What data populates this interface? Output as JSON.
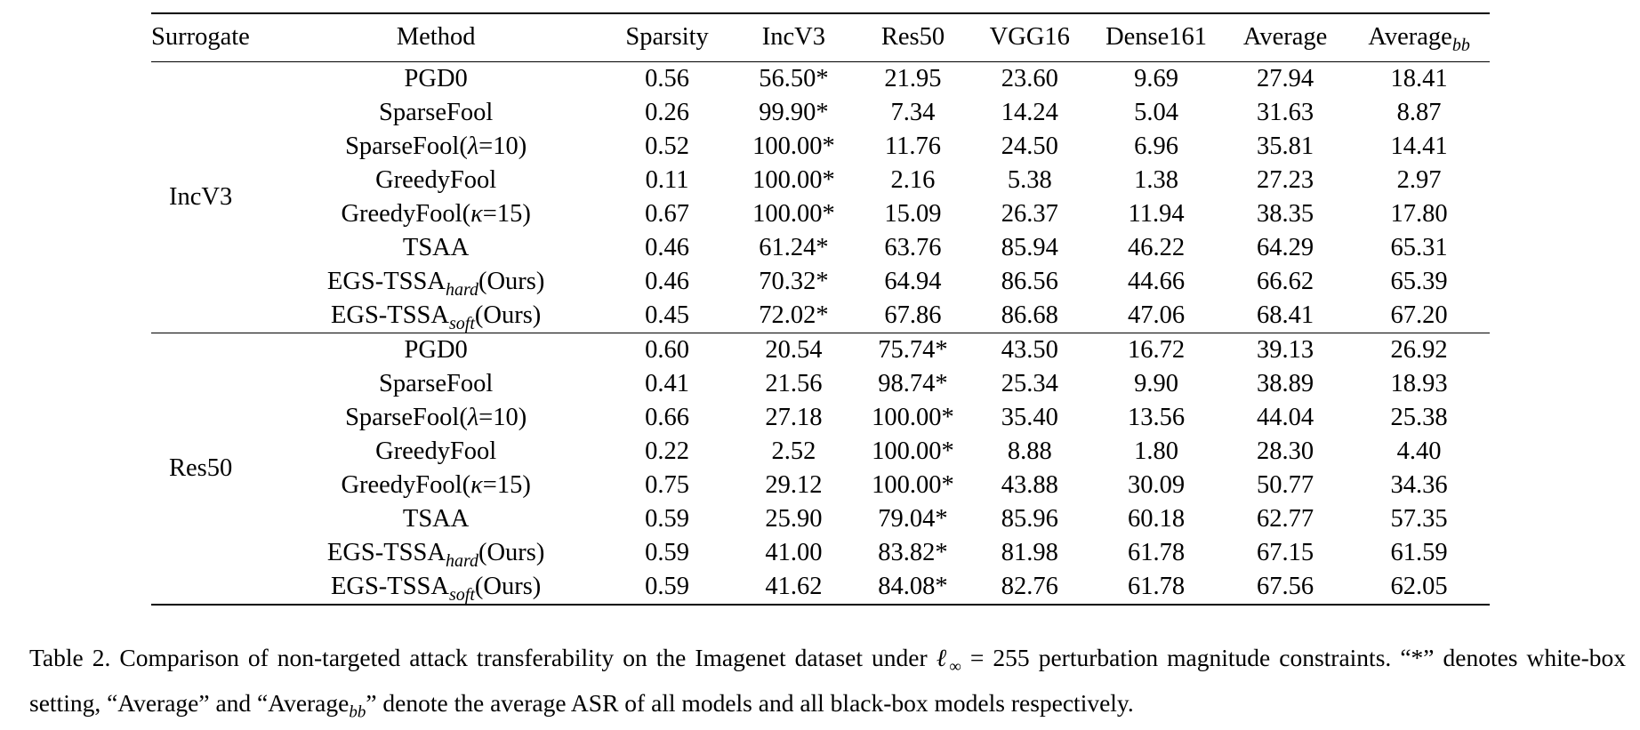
{
  "table": {
    "headers": {
      "surrogate": "Surrogate",
      "method": "Method",
      "sparsity": "Sparsity",
      "incv3": "IncV3",
      "res50": "Res50",
      "vgg16": "VGG16",
      "dense161": "Dense161",
      "average": "Average",
      "average_bb_base": "Average",
      "average_bb_sub": "bb"
    },
    "groups": [
      {
        "surrogate": "IncV3",
        "rows": [
          {
            "method": "PGD0",
            "sparsity": "0.56",
            "incv3": "56.50*",
            "res50": "21.95",
            "vgg16": "23.60",
            "dense161": "9.69",
            "average": "27.94",
            "average_bb": "18.41"
          },
          {
            "method": "SparseFool",
            "sparsity": "0.26",
            "incv3": "99.90*",
            "res50": "7.34",
            "vgg16": "14.24",
            "dense161": "5.04",
            "average": "31.63",
            "average_bb": "8.87"
          },
          {
            "method_base": "SparseFool(",
            "method_param": "λ",
            "method_tail": "=10)",
            "sparsity": "0.52",
            "incv3": "100.00*",
            "res50": "11.76",
            "vgg16": "24.50",
            "dense161": "6.96",
            "average": "35.81",
            "average_bb": "14.41"
          },
          {
            "method": "GreedyFool",
            "sparsity": "0.11",
            "incv3": "100.00*",
            "res50": "2.16",
            "vgg16": "5.38",
            "dense161": "1.38",
            "average": "27.23",
            "average_bb": "2.97"
          },
          {
            "method_base": "GreedyFool(",
            "method_param": "κ",
            "method_tail": "=15)",
            "sparsity": "0.67",
            "incv3": "100.00*",
            "res50": "15.09",
            "vgg16": "26.37",
            "dense161": "11.94",
            "average": "38.35",
            "average_bb": "17.80"
          },
          {
            "method": "TSAA",
            "sparsity": "0.46",
            "incv3": "61.24*",
            "res50": "63.76",
            "vgg16": "85.94",
            "dense161": "46.22",
            "average": "64.29",
            "average_bb": "65.31"
          },
          {
            "method_base": "EGS-TSSA",
            "method_sub": "hard",
            "method_tail": "(Ours)",
            "sparsity": "0.46",
            "incv3": "70.32*",
            "res50": "64.94",
            "vgg16": "86.56",
            "dense161": "44.66",
            "average": "66.62",
            "average_bb": "65.39"
          },
          {
            "method_base": "EGS-TSSA",
            "method_sub": "soft",
            "method_tail": "(Ours)",
            "sparsity": "0.45",
            "incv3": "72.02*",
            "res50": "67.86",
            "vgg16": "86.68",
            "dense161": "47.06",
            "average": "68.41",
            "average_bb": "67.20"
          }
        ]
      },
      {
        "surrogate": "Res50",
        "rows": [
          {
            "method": "PGD0",
            "sparsity": "0.60",
            "incv3": "20.54",
            "res50": "75.74*",
            "vgg16": "43.50",
            "dense161": "16.72",
            "average": "39.13",
            "average_bb": "26.92"
          },
          {
            "method": "SparseFool",
            "sparsity": "0.41",
            "incv3": "21.56",
            "res50": "98.74*",
            "vgg16": "25.34",
            "dense161": "9.90",
            "average": "38.89",
            "average_bb": "18.93"
          },
          {
            "method_base": "SparseFool(",
            "method_param": "λ",
            "method_tail": "=10)",
            "sparsity": "0.66",
            "incv3": "27.18",
            "res50": "100.00*",
            "vgg16": "35.40",
            "dense161": "13.56",
            "average": "44.04",
            "average_bb": "25.38"
          },
          {
            "method": "GreedyFool",
            "sparsity": "0.22",
            "incv3": "2.52",
            "res50": "100.00*",
            "vgg16": "8.88",
            "dense161": "1.80",
            "average": "28.30",
            "average_bb": "4.40"
          },
          {
            "method_base": "GreedyFool(",
            "method_param": "κ",
            "method_tail": "=15)",
            "sparsity": "0.75",
            "incv3": "29.12",
            "res50": "100.00*",
            "vgg16": "43.88",
            "dense161": "30.09",
            "average": "50.77",
            "average_bb": "34.36"
          },
          {
            "method": "TSAA",
            "sparsity": "0.59",
            "incv3": "25.90",
            "res50": "79.04*",
            "vgg16": "85.96",
            "dense161": "60.18",
            "average": "62.77",
            "average_bb": "57.35"
          },
          {
            "method_base": "EGS-TSSA",
            "method_sub": "hard",
            "method_tail": "(Ours)",
            "sparsity": "0.59",
            "incv3": "41.00",
            "res50": "83.82*",
            "vgg16": "81.98",
            "dense161": "61.78",
            "average": "67.15",
            "average_bb": "61.59"
          },
          {
            "method_base": "EGS-TSSA",
            "method_sub": "soft",
            "method_tail": "(Ours)",
            "sparsity": "0.59",
            "incv3": "41.62",
            "res50": "84.08*",
            "vgg16": "82.76",
            "dense161": "61.78",
            "average": "67.56",
            "average_bb": "62.05"
          }
        ]
      }
    ]
  },
  "caption": {
    "label": "Table 2.",
    "text_1": "Comparison of non-targeted attack transferability on the Imagenet dataset under",
    "math_l": "ℓ",
    "math_sub": "∞",
    "math_eq": "= 255",
    "text_2": "perturbation magnitude constraints.",
    "line2_a": "“*” denotes white-box setting, “Average” and “Average",
    "line2_sub": "bb",
    "line2_b": "” denote the average ASR of all models and all black-box models respectively."
  }
}
